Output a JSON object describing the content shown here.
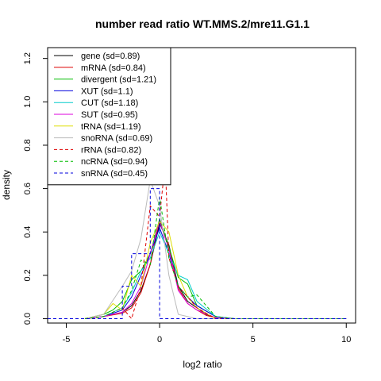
{
  "chart_data": {
    "type": "line",
    "title": "number read ratio WT.MMS.2/mre11.G1.1",
    "xlabel": "log2 ratio",
    "ylabel": "density",
    "xlim": [
      -6,
      10.5
    ],
    "ylim": [
      -0.02,
      1.25
    ],
    "x_ticks": [
      -5,
      0,
      5,
      10
    ],
    "y_ticks": [
      0.0,
      0.2,
      0.4,
      0.6,
      0.8,
      1.0,
      1.2
    ],
    "x_tick_labels": [
      "-5",
      "0",
      "5",
      "10"
    ],
    "y_tick_labels": [
      "0.0",
      "0.2",
      "0.4",
      "0.6",
      "0.8",
      "1.0",
      "1.2"
    ],
    "grid": false,
    "legend_position": "top-left",
    "series": [
      {
        "name": "gene (sd=0.89)",
        "color": "#000000",
        "dash": "solid",
        "x": [
          -4,
          -3,
          -2,
          -1.5,
          -1,
          -0.5,
          0,
          0.5,
          1,
          1.5,
          2,
          2.5,
          3,
          4,
          5,
          10
        ],
        "y": [
          0,
          0.01,
          0.03,
          0.06,
          0.13,
          0.25,
          0.44,
          0.34,
          0.15,
          0.08,
          0.05,
          0.02,
          0.005,
          0,
          0,
          0
        ]
      },
      {
        "name": "mRNA (sd=0.84)",
        "color": "#dd0000",
        "dash": "solid",
        "x": [
          -4,
          -3,
          -2,
          -1.5,
          -1,
          -0.5,
          0,
          0.5,
          1,
          1.5,
          2,
          2.5,
          3,
          4,
          10
        ],
        "y": [
          0,
          0.01,
          0.025,
          0.05,
          0.12,
          0.25,
          0.46,
          0.33,
          0.14,
          0.07,
          0.04,
          0.015,
          0.005,
          0,
          0
        ]
      },
      {
        "name": "divergent (sd=1.21)",
        "color": "#00bb00",
        "dash": "solid",
        "x": [
          -4,
          -3,
          -2.5,
          -2,
          -1.5,
          -1,
          -0.5,
          0,
          0.5,
          1,
          1.5,
          2,
          3,
          4,
          10
        ],
        "y": [
          0,
          0.02,
          0.04,
          0.08,
          0.18,
          0.22,
          0.3,
          0.46,
          0.33,
          0.19,
          0.16,
          0.06,
          0.01,
          0,
          0
        ]
      },
      {
        "name": "XUT (sd=1.1)",
        "color": "#0000dd",
        "dash": "solid",
        "x": [
          -4,
          -3,
          -2,
          -1.5,
          -1,
          -0.5,
          0,
          0.5,
          1,
          1.5,
          2,
          3,
          4,
          10
        ],
        "y": [
          0,
          0.01,
          0.04,
          0.1,
          0.2,
          0.3,
          0.42,
          0.3,
          0.15,
          0.1,
          0.06,
          0.01,
          0,
          0
        ]
      },
      {
        "name": "CUT (sd=1.18)",
        "color": "#00cccc",
        "dash": "solid",
        "x": [
          -4,
          -3,
          -2,
          -1.5,
          -1,
          -0.5,
          0,
          0.5,
          1,
          1.5,
          2,
          3,
          4,
          10
        ],
        "y": [
          0,
          0.01,
          0.05,
          0.12,
          0.22,
          0.28,
          0.4,
          0.3,
          0.2,
          0.18,
          0.08,
          0.01,
          0,
          0
        ]
      },
      {
        "name": "SUT (sd=0.95)",
        "color": "#dd00dd",
        "dash": "solid",
        "x": [
          -4,
          -3,
          -2,
          -1.5,
          -1,
          -0.5,
          0,
          0.5,
          1,
          1.5,
          2,
          3,
          4,
          10
        ],
        "y": [
          0,
          0.01,
          0.03,
          0.07,
          0.15,
          0.3,
          0.45,
          0.32,
          0.13,
          0.07,
          0.04,
          0.005,
          0,
          0
        ]
      },
      {
        "name": "tRNA (sd=1.19)",
        "color": "#dddd00",
        "dash": "solid",
        "x": [
          -4,
          -3,
          -2.5,
          -2,
          -1.5,
          -1,
          -0.5,
          0,
          0.5,
          1,
          1.5,
          2,
          3,
          4,
          10
        ],
        "y": [
          0,
          0.02,
          0.07,
          0.04,
          0.2,
          0.15,
          0.35,
          0.45,
          0.4,
          0.2,
          0.1,
          0.05,
          0,
          0,
          0
        ]
      },
      {
        "name": "snoRNA (sd=0.69)",
        "color": "#bbbbbb",
        "dash": "solid",
        "x": [
          -4,
          -3,
          -2,
          -1.5,
          -1,
          -0.5,
          0,
          0.5,
          1,
          2,
          3,
          10
        ],
        "y": [
          0,
          0.02,
          0.15,
          0.22,
          0.37,
          0.64,
          0.52,
          0.2,
          0.02,
          0,
          0,
          0
        ]
      },
      {
        "name": "rRNA (sd=0.82)",
        "color": "#dd0000",
        "dash": "dashed",
        "x": [
          -4,
          -3,
          -2,
          -1.5,
          -1,
          -0.5,
          0,
          0.3,
          0.5,
          1,
          1.5,
          2,
          3,
          10
        ],
        "y": [
          0,
          0.01,
          0.05,
          0.0,
          0.15,
          0.52,
          0.47,
          0.72,
          0.28,
          0.15,
          0.1,
          0.05,
          0,
          0
        ]
      },
      {
        "name": "ncRNA (sd=0.94)",
        "color": "#00bb00",
        "dash": "dashed",
        "x": [
          -4,
          -3,
          -2,
          -1.5,
          -1,
          -0.5,
          0,
          0.5,
          1,
          1.5,
          2,
          3,
          4,
          10
        ],
        "y": [
          0,
          0.01,
          0.05,
          0.13,
          0.27,
          0.25,
          0.56,
          0.28,
          0.15,
          0.1,
          0.11,
          0.01,
          0,
          0
        ]
      },
      {
        "name": "snRNA (sd=0.45)",
        "color": "#0000dd",
        "dash": "dashed",
        "x": [
          -6,
          -2,
          -2,
          -1.5,
          -1.5,
          -1,
          -1,
          -0.5,
          -0.5,
          0,
          0,
          0.5,
          0.5,
          10
        ],
        "y": [
          0,
          0,
          0.15,
          0.15,
          0.3,
          0.3,
          0.3,
          0.3,
          0.6,
          0.6,
          0.0,
          0.0,
          0,
          0
        ]
      }
    ]
  }
}
